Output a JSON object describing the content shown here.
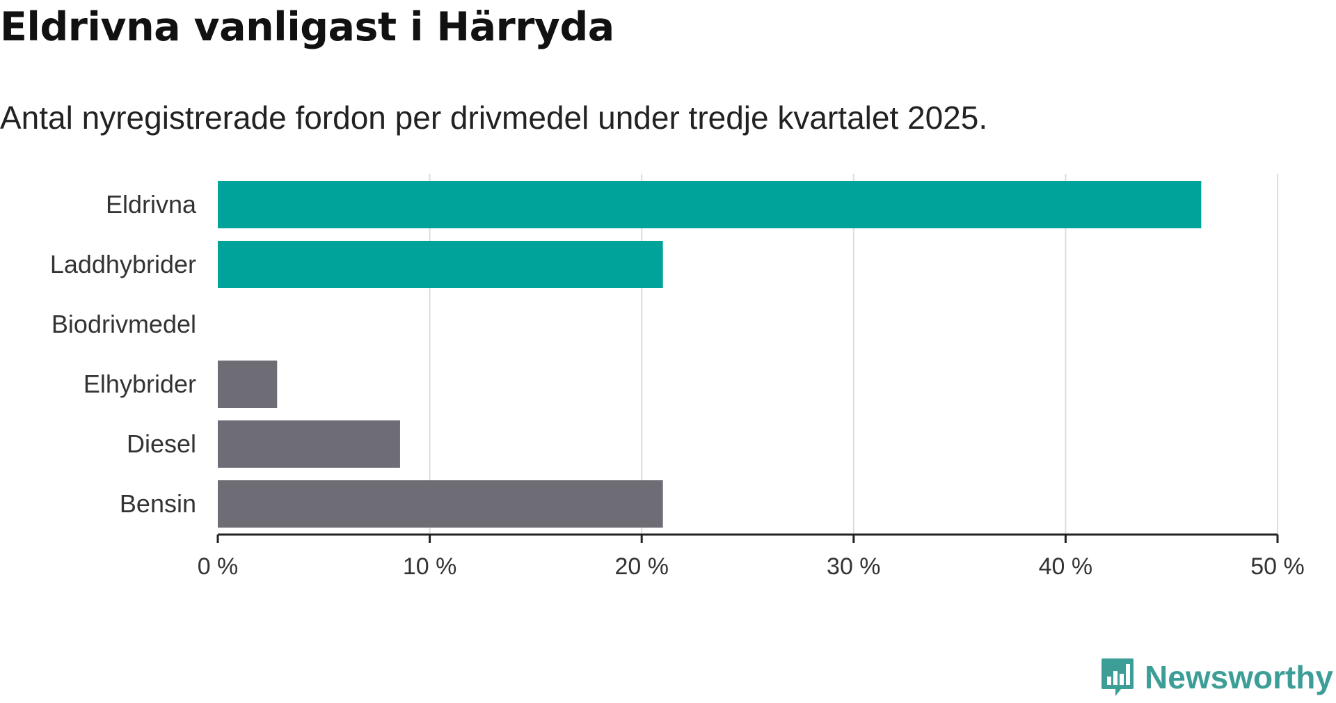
{
  "header": {
    "title": "Eldrivna vanligast i Härryda",
    "subtitle": "Antal nyregistrerade fordon per drivmedel under tredje kvartalet 2025."
  },
  "brand": {
    "name": "Newsworthy",
    "icon": "newsworthy-logo-icon"
  },
  "colors": {
    "highlight": "#00a39a",
    "muted": "#6e6d75",
    "grid": "#dcdcdc",
    "axis": "#222222"
  },
  "chart_data": {
    "type": "bar",
    "orientation": "horizontal",
    "title": "Eldrivna vanligast i Härryda",
    "subtitle": "Antal nyregistrerade fordon per drivmedel under tredje kvartalet 2025.",
    "categories": [
      "Eldrivna",
      "Laddhybrider",
      "Biodrivmedel",
      "Elhybrider",
      "Diesel",
      "Bensin"
    ],
    "values": [
      46.4,
      21.0,
      0,
      2.8,
      8.6,
      21.0
    ],
    "highlight": [
      true,
      true,
      false,
      false,
      false,
      false
    ],
    "xlim": [
      0,
      50
    ],
    "xticks": [
      0,
      10,
      20,
      30,
      40,
      50
    ],
    "xtick_labels": [
      "0 %",
      "10 %",
      "20 %",
      "30 %",
      "40 %",
      "50 %"
    ],
    "unit": "%",
    "grid": true,
    "xlabel": "",
    "ylabel": ""
  }
}
